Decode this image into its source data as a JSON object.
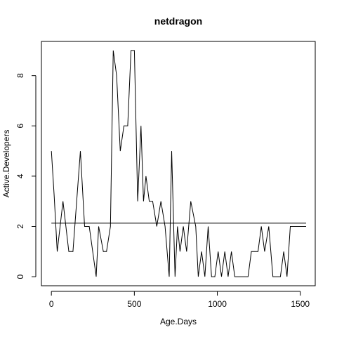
{
  "chart_data": {
    "type": "line",
    "title": "netdragon",
    "xlabel": "Age.Days",
    "ylabel": "Active.Developers",
    "xlim": [
      -60,
      1590
    ],
    "ylim": [
      -0.36,
      9.36
    ],
    "x_ticks": [
      0,
      500,
      1000,
      1500
    ],
    "y_ticks": [
      0,
      2,
      4,
      6,
      8
    ],
    "grid": false,
    "legend": "none",
    "series": [
      {
        "x": [
          0,
          17,
          35,
          70,
          105,
          130,
          175,
          200,
          228,
          270,
          285,
          313,
          332,
          356,
          373,
          393,
          415,
          437,
          460,
          480,
          500,
          520,
          540,
          555,
          570,
          590,
          610,
          635,
          660,
          685,
          710,
          725,
          745,
          760,
          775,
          795,
          815,
          840,
          870,
          885,
          905,
          925,
          945,
          965,
          985,
          1005,
          1025,
          1045,
          1065,
          1085,
          1105,
          1125,
          1145,
          1165,
          1185,
          1205,
          1225,
          1245,
          1265,
          1285,
          1310,
          1335,
          1355,
          1380,
          1400,
          1420,
          1440,
          1465,
          1490,
          1515,
          1535
        ],
        "y": [
          5,
          3.2,
          1,
          3,
          1,
          1,
          5,
          2,
          2,
          0,
          2,
          1,
          1,
          2,
          9,
          8,
          5,
          6,
          6,
          9,
          9,
          3,
          6,
          3,
          4,
          3,
          3,
          2,
          3,
          2,
          0,
          5,
          0,
          2,
          1,
          2,
          1,
          3,
          2,
          0,
          1,
          0,
          2,
          0,
          0,
          1,
          0,
          1,
          0,
          1,
          0,
          0,
          0,
          0,
          0,
          1,
          1,
          1,
          2,
          1,
          2,
          0,
          0,
          0,
          1,
          0,
          2,
          2,
          2,
          2,
          2
        ]
      }
    ],
    "reference_line": {
      "y": 2.13
    }
  }
}
